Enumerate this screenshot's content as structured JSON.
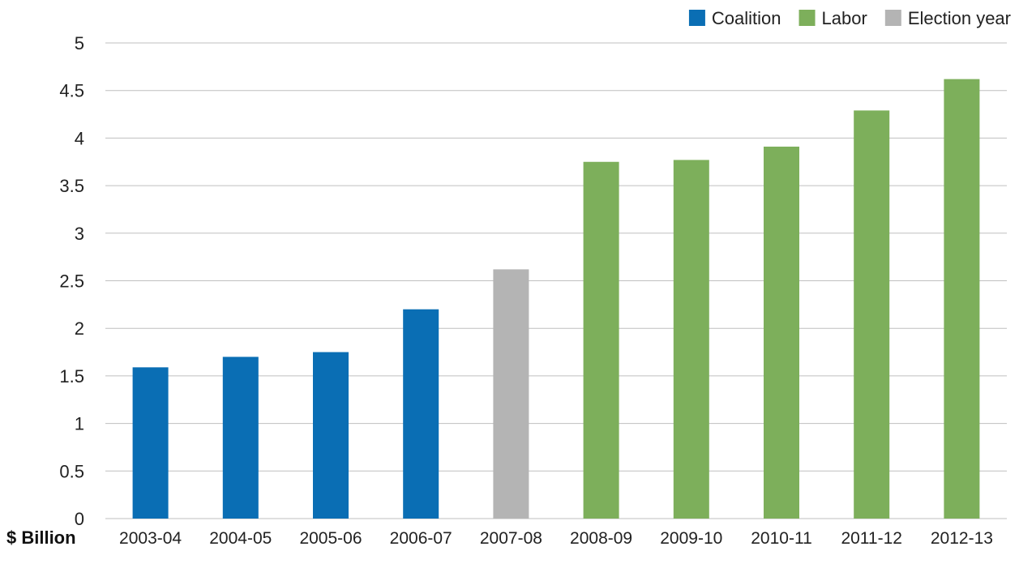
{
  "chart_data": {
    "type": "bar",
    "categories": [
      "2003-04",
      "2004-05",
      "2005-06",
      "2006-07",
      "2007-08",
      "2008-09",
      "2009-10",
      "2010-11",
      "2011-12",
      "2012-13"
    ],
    "values": [
      1.59,
      1.7,
      1.75,
      2.2,
      2.62,
      3.75,
      3.77,
      3.91,
      4.29,
      4.62
    ],
    "bar_groups": [
      "Coalition",
      "Coalition",
      "Coalition",
      "Coalition",
      "Election year",
      "Labor",
      "Labor",
      "Labor",
      "Labor",
      "Labor"
    ],
    "legend": [
      {
        "name": "Coalition",
        "color": "#0a6eb4"
      },
      {
        "name": "Labor",
        "color": "#7daf5b"
      },
      {
        "name": "Election year",
        "color": "#b4b4b4"
      }
    ],
    "unit_label": "$ Billion",
    "y_ticks": [
      "0",
      "0.5",
      "1",
      "1.5",
      "2",
      "2.5",
      "3",
      "3.5",
      "4",
      "4.5",
      "5"
    ],
    "ylim": [
      0,
      5
    ],
    "grid": true,
    "legend_position": "top-right",
    "gridline_color": "#bfbfbf"
  }
}
